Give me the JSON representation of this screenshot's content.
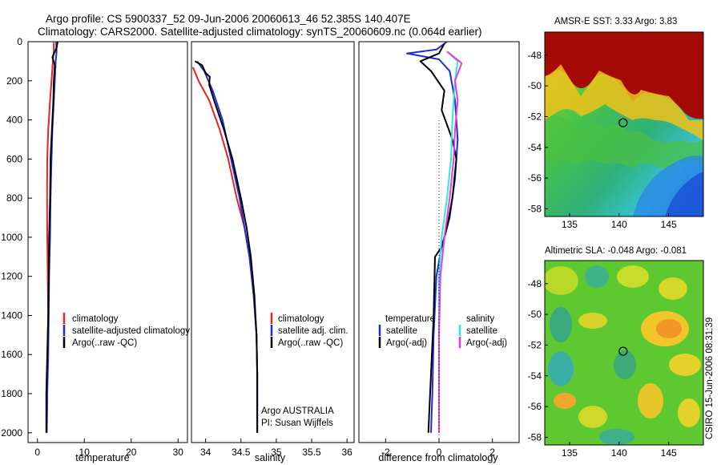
{
  "figure": {
    "title_line1": "Argo profile: CS 5900337_52 09-Jun-2006 20060613_46 52.385S 140.407E",
    "title_line2": "Climatology: CARS2000. Satellite-adjusted climatology: synTS_20060609.nc (0.064d earlier)",
    "credit": "CSIRO 15-Jun-2006 08:31:39",
    "argo_note_line1": "Argo AUSTRALIA",
    "argo_note_line2": "PI: Susan Wijffels"
  },
  "colors": {
    "climatology": "#e8231f",
    "satellite": "#1c2dd8",
    "argo": "#000000",
    "sal_satellite": "#2fe6e6",
    "sal_argo": "#e63ae6"
  },
  "chart_data": [
    {
      "type": "line",
      "panel": "temperature",
      "xlabel": "temperature",
      "ylabel": "",
      "xlim": [
        -2,
        32
      ],
      "ylim": [
        2050,
        0
      ],
      "y_reversed": true,
      "xticks": [
        "0",
        "10",
        "20",
        "30"
      ],
      "yticks": [
        "0",
        "200",
        "400",
        "600",
        "800",
        "1000",
        "1200",
        "1400",
        "1600",
        "1800",
        "2000"
      ],
      "legend": [
        "climatology",
        "satellite-adjusted climatology",
        "Argo(..raw -QC)"
      ],
      "series": [
        {
          "name": "climatology",
          "color": "#e8231f",
          "points": [
            [
              3.5,
              0
            ],
            [
              3.5,
              50
            ],
            [
              3.3,
              100
            ],
            [
              3.0,
              200
            ],
            [
              2.7,
              300
            ],
            [
              2.3,
              450
            ],
            [
              2.1,
              600
            ],
            [
              2.05,
              800
            ],
            [
              2.1,
              1000
            ],
            [
              2.2,
              1200
            ],
            [
              2.3,
              1400
            ],
            [
              2.2,
              1600
            ],
            [
              2.1,
              1800
            ],
            [
              2.0,
              2000
            ]
          ]
        },
        {
          "name": "satellite-adjusted climatology",
          "color": "#1c2dd8",
          "points": [
            [
              4.0,
              0
            ],
            [
              4.1,
              50
            ],
            [
              3.9,
              100
            ],
            [
              3.7,
              200
            ],
            [
              3.5,
              300
            ],
            [
              3.2,
              450
            ],
            [
              3.0,
              600
            ],
            [
              2.8,
              800
            ],
            [
              2.7,
              1000
            ],
            [
              2.5,
              1200
            ],
            [
              2.4,
              1400
            ],
            [
              2.3,
              1600
            ],
            [
              2.1,
              1800
            ],
            [
              2.0,
              2000
            ]
          ]
        },
        {
          "name": "Argo(..raw -QC)",
          "color": "#000000",
          "points": [
            [
              4.3,
              0
            ],
            [
              4.1,
              30
            ],
            [
              3.2,
              80
            ],
            [
              3.7,
              120
            ],
            [
              3.5,
              200
            ],
            [
              3.4,
              300
            ],
            [
              3.1,
              450
            ],
            [
              2.8,
              600
            ],
            [
              2.7,
              800
            ],
            [
              2.5,
              1000
            ],
            [
              2.4,
              1200
            ],
            [
              2.3,
              1400
            ],
            [
              2.1,
              1600
            ],
            [
              1.9,
              1800
            ],
            [
              1.9,
              2000
            ]
          ]
        }
      ]
    },
    {
      "type": "line",
      "panel": "salinity",
      "xlabel": "salinity",
      "ylabel": "",
      "xlim": [
        33.8,
        36.1
      ],
      "ylim": [
        2050,
        0
      ],
      "y_reversed": true,
      "xticks": [
        "34",
        "34.5",
        "35",
        "35.5",
        "36"
      ],
      "legend": [
        "climatology",
        "satellite adj. clim.",
        "Argo(..raw -QC)"
      ],
      "series": [
        {
          "name": "climatology",
          "color": "#e8231f",
          "points": [
            [
              33.82,
              130
            ],
            [
              33.9,
              200
            ],
            [
              34.05,
              300
            ],
            [
              34.2,
              450
            ],
            [
              34.32,
              600
            ],
            [
              34.44,
              800
            ],
            [
              34.55,
              950
            ],
            [
              34.62,
              1100
            ],
            [
              34.68,
              1300
            ],
            [
              34.72,
              1500
            ],
            [
              34.73,
              1700
            ],
            [
              34.73,
              2000
            ]
          ]
        },
        {
          "name": "satellite adj. clim.",
          "color": "#1c2dd8",
          "points": [
            [
              33.88,
              100
            ],
            [
              33.98,
              150
            ],
            [
              34.1,
              250
            ],
            [
              34.24,
              400
            ],
            [
              34.36,
              600
            ],
            [
              34.48,
              800
            ],
            [
              34.55,
              950
            ],
            [
              34.62,
              1100
            ],
            [
              34.68,
              1300
            ],
            [
              34.72,
              1500
            ],
            [
              34.73,
              1700
            ],
            [
              34.73,
              2000
            ]
          ]
        },
        {
          "name": "Argo(..raw -QC)",
          "color": "#000000",
          "points": [
            [
              33.85,
              100
            ],
            [
              33.95,
              120
            ],
            [
              34.0,
              160
            ],
            [
              34.06,
              180
            ],
            [
              34.05,
              220
            ],
            [
              34.12,
              300
            ],
            [
              34.26,
              450
            ],
            [
              34.38,
              600
            ],
            [
              34.5,
              800
            ],
            [
              34.58,
              950
            ],
            [
              34.64,
              1100
            ],
            [
              34.69,
              1300
            ],
            [
              34.72,
              1500
            ],
            [
              34.73,
              1700
            ],
            [
              34.73,
              2000
            ]
          ]
        }
      ]
    },
    {
      "type": "line",
      "panel": "difference",
      "xlabel": "difference from climatology",
      "ylabel": "",
      "xlim": [
        -3,
        3
      ],
      "ylim": [
        2050,
        0
      ],
      "y_reversed": true,
      "xticks": [
        "-2",
        "0",
        "2"
      ],
      "legend_groups": [
        {
          "title": "temperature",
          "entries": [
            "satellite",
            "Argo(-adj)"
          ]
        },
        {
          "title": "salinity",
          "entries": [
            "satellite",
            "Argo(-adj)"
          ]
        }
      ],
      "series": [
        {
          "name": "temperature satellite",
          "color": "#1c2dd8",
          "points": [
            [
              0.3,
              0
            ],
            [
              -0.1,
              40
            ],
            [
              -1.2,
              60
            ],
            [
              0.0,
              90
            ],
            [
              0.4,
              150
            ],
            [
              0.6,
              300
            ],
            [
              0.7,
              500
            ],
            [
              0.6,
              700
            ],
            [
              0.4,
              900
            ],
            [
              0.1,
              1050
            ],
            [
              -0.1,
              1200
            ],
            [
              -0.2,
              1500
            ],
            [
              -0.25,
              1800
            ],
            [
              -0.3,
              2000
            ]
          ]
        },
        {
          "name": "temperature Argo(-adj)",
          "color": "#000000",
          "points": [
            [
              0.2,
              10
            ],
            [
              0.0,
              60
            ],
            [
              -0.7,
              100
            ],
            [
              -0.3,
              150
            ],
            [
              0.2,
              250
            ],
            [
              0.1,
              350
            ],
            [
              0.5,
              500
            ],
            [
              0.65,
              600
            ],
            [
              0.5,
              800
            ],
            [
              0.3,
              950
            ],
            [
              0.1,
              1050
            ],
            [
              -0.15,
              1100
            ],
            [
              -0.2,
              1400
            ],
            [
              -0.3,
              1700
            ],
            [
              -0.4,
              2000
            ]
          ]
        },
        {
          "name": "salinity satellite",
          "color": "#2fe6e6",
          "points": [
            [
              0.3,
              50
            ],
            [
              0.7,
              100
            ],
            [
              0.6,
              200
            ],
            [
              0.5,
              400
            ],
            [
              0.45,
              600
            ],
            [
              0.3,
              800
            ],
            [
              0.1,
              1000
            ],
            [
              0.0,
              1200
            ],
            [
              0.0,
              1500
            ],
            [
              0.0,
              1800
            ],
            [
              0.0,
              2000
            ]
          ]
        },
        {
          "name": "salinity Argo(-adj)",
          "color": "#e63ae6",
          "points": [
            [
              0.3,
              50
            ],
            [
              0.85,
              110
            ],
            [
              0.6,
              200
            ],
            [
              0.7,
              300
            ],
            [
              0.6,
              450
            ],
            [
              0.55,
              600
            ],
            [
              0.4,
              800
            ],
            [
              0.2,
              1000
            ],
            [
              0.05,
              1200
            ],
            [
              0.0,
              1500
            ],
            [
              0.0,
              1800
            ],
            [
              0.0,
              2000
            ]
          ]
        }
      ]
    },
    {
      "type": "heatmap",
      "panel": "map-sst",
      "title": "AMSR-E SST: 3.33 Argo: 3.83",
      "xticks": [
        "135",
        "140",
        "145"
      ],
      "yticks": [
        "-48",
        "-50",
        "-52",
        "-54",
        "-56",
        "-58"
      ],
      "xlim": [
        132.5,
        148.5
      ],
      "ylim": [
        -58.5,
        -46.5
      ],
      "marker": {
        "lon": 140.4,
        "lat": -52.4
      }
    },
    {
      "type": "heatmap",
      "panel": "map-sla",
      "title": "Altimetric SLA: -0.048 Argo: -0.081",
      "xticks": [
        "135",
        "140",
        "145"
      ],
      "yticks": [
        "-48",
        "-50",
        "-52",
        "-54",
        "-56",
        "-58"
      ],
      "xlim": [
        132.5,
        148.5
      ],
      "ylim": [
        -58.5,
        -46.5
      ],
      "marker": {
        "lon": 140.4,
        "lat": -52.4
      }
    }
  ]
}
